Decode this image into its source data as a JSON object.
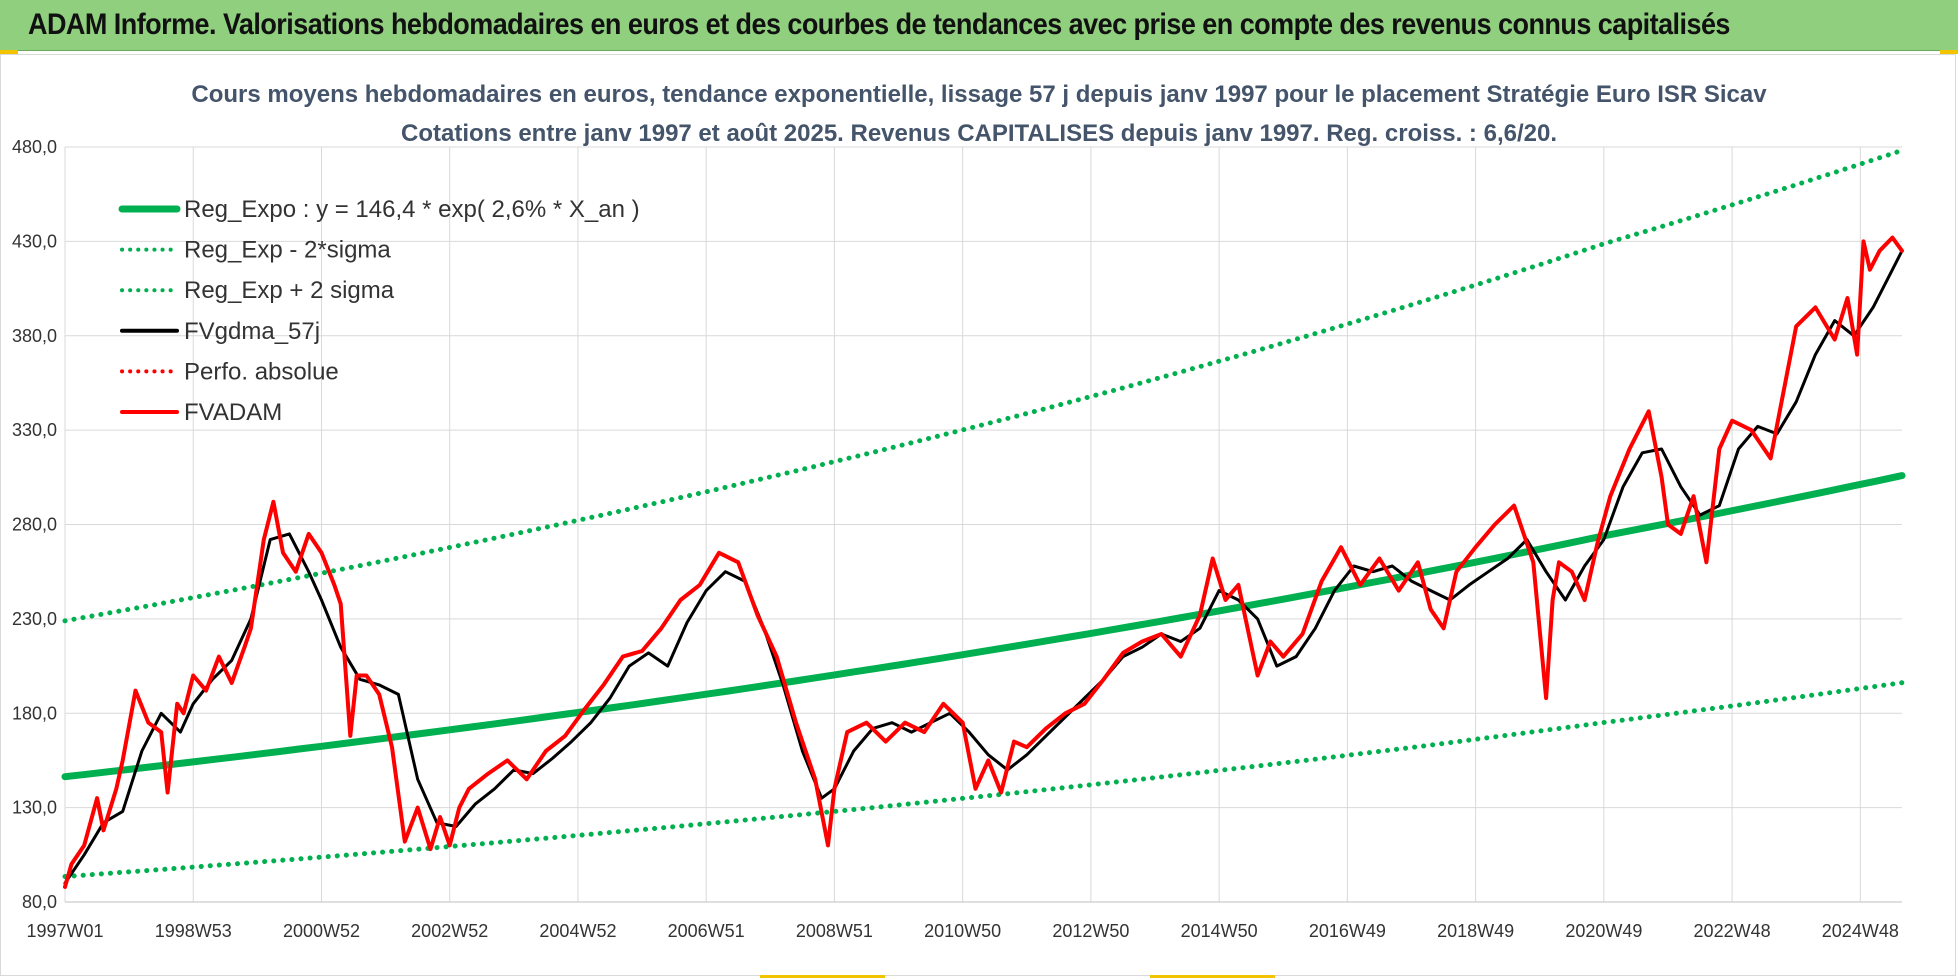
{
  "header": {
    "title": "ADAM Informe. Valorisations hebdomadaires en euros et des courbes de tendances avec prise en compte des revenus connus capitalisés"
  },
  "chart_data": {
    "type": "line",
    "title_line1": "Cours moyens hebdomadaires en euros, tendance exponentielle, lissage 57 j depuis janv 1997 pour le placement Stratégie Euro ISR Sicav",
    "title_line2": "Cotations entre janv 1997 et août 2025. Revenus CAPITALISES depuis janv 1997. Reg. croiss. : 6,6/20.",
    "ylim": [
      80,
      480
    ],
    "yticks": [
      "80,0",
      "130,0",
      "180,0",
      "230,0",
      "280,0",
      "330,0",
      "380,0",
      "430,0",
      "480,0"
    ],
    "xlim": [
      1997.0,
      2025.65
    ],
    "xticks": [
      {
        "label": "1997W01",
        "x": 1997.0
      },
      {
        "label": "1998W53",
        "x": 1999.0
      },
      {
        "label": "2000W52",
        "x": 2001.0
      },
      {
        "label": "2002W52",
        "x": 2003.0
      },
      {
        "label": "2004W52",
        "x": 2005.0
      },
      {
        "label": "2006W51",
        "x": 2007.0
      },
      {
        "label": "2008W51",
        "x": 2009.0
      },
      {
        "label": "2010W50",
        "x": 2011.0
      },
      {
        "label": "2012W50",
        "x": 2013.0
      },
      {
        "label": "2014W50",
        "x": 2015.0
      },
      {
        "label": "2016W49",
        "x": 2017.0
      },
      {
        "label": "2018W49",
        "x": 2019.0
      },
      {
        "label": "2020W49",
        "x": 2021.0
      },
      {
        "label": "2022W48",
        "x": 2023.0
      },
      {
        "label": "2024W48",
        "x": 2025.0
      }
    ],
    "grid": true,
    "legend_position": "top-left",
    "series": [
      {
        "name": "Reg_Expo : y = 146,4 * exp( 2,6% *  X_an )",
        "color": "#00b050",
        "style": "solid",
        "x": [
          1997.0,
          2001.0,
          2005.0,
          2009.0,
          2013.0,
          2017.0,
          2021.0,
          2025.65
        ],
        "values": [
          146.4,
          162.5,
          180.4,
          200.3,
          222.3,
          246.8,
          274.0,
          305.9
        ]
      },
      {
        "name": "Reg_Exp - 2*sigma",
        "color": "#00b050",
        "style": "dotted",
        "x": [
          1997.0,
          2001.0,
          2005.0,
          2009.0,
          2013.0,
          2017.0,
          2021.0,
          2025.65
        ],
        "values": [
          93.5,
          103.8,
          115.3,
          128.0,
          142.1,
          157.7,
          175.1,
          196.2
        ]
      },
      {
        "name": "Reg_Exp + 2 sigma",
        "color": "#00b050",
        "style": "dotted",
        "x": [
          1997.0,
          2001.0,
          2005.0,
          2009.0,
          2013.0,
          2017.0,
          2021.0,
          2025.65
        ],
        "values": [
          229.0,
          254.2,
          282.2,
          313.3,
          347.8,
          386.2,
          428.7,
          478.2
        ]
      },
      {
        "name": "FVgdma_57j",
        "color": "#000000",
        "style": "solid",
        "x": [
          1997.0,
          1997.3,
          1997.6,
          1997.9,
          1998.2,
          1998.5,
          1998.8,
          1999.0,
          1999.3,
          1999.6,
          1999.9,
          2000.2,
          2000.5,
          2000.8,
          2001.0,
          2001.3,
          2001.6,
          2001.9,
          2002.2,
          2002.5,
          2002.8,
          2003.1,
          2003.4,
          2003.7,
          2004.0,
          2004.3,
          2004.6,
          2004.9,
          2005.2,
          2005.5,
          2005.8,
          2006.1,
          2006.4,
          2006.7,
          2007.0,
          2007.3,
          2007.6,
          2007.9,
          2008.2,
          2008.5,
          2008.8,
          2009.0,
          2009.3,
          2009.6,
          2009.9,
          2010.2,
          2010.5,
          2010.8,
          2011.1,
          2011.4,
          2011.7,
          2012.0,
          2012.3,
          2012.6,
          2012.9,
          2013.2,
          2013.5,
          2013.8,
          2014.1,
          2014.4,
          2014.7,
          2015.0,
          2015.3,
          2015.6,
          2015.9,
          2016.2,
          2016.5,
          2016.8,
          2017.1,
          2017.4,
          2017.7,
          2018.0,
          2018.3,
          2018.6,
          2018.9,
          2019.2,
          2019.5,
          2019.8,
          2020.1,
          2020.4,
          2020.7,
          2021.0,
          2021.3,
          2021.6,
          2021.9,
          2022.2,
          2022.5,
          2022.8,
          2023.1,
          2023.4,
          2023.7,
          2024.0,
          2024.3,
          2024.6,
          2024.9,
          2025.2,
          2025.5,
          2025.65
        ],
        "values": [
          90,
          105,
          122,
          128,
          160,
          180,
          170,
          185,
          198,
          208,
          230,
          272,
          275,
          255,
          240,
          215,
          198,
          195,
          190,
          145,
          122,
          120,
          132,
          140,
          150,
          148,
          156,
          165,
          175,
          188,
          205,
          212,
          205,
          228,
          245,
          255,
          250,
          225,
          195,
          160,
          135,
          140,
          160,
          172,
          175,
          170,
          175,
          180,
          170,
          158,
          150,
          158,
          168,
          178,
          188,
          198,
          210,
          215,
          222,
          218,
          225,
          245,
          240,
          230,
          205,
          210,
          225,
          245,
          258,
          255,
          258,
          250,
          245,
          240,
          248,
          255,
          262,
          272,
          255,
          240,
          258,
          272,
          300,
          318,
          320,
          300,
          285,
          290,
          320,
          332,
          328,
          345,
          370,
          388,
          380,
          395,
          415,
          425
        ]
      },
      {
        "name": "Perfo. absolue",
        "color": "#ff0000",
        "style": "dotted",
        "x": [],
        "values": []
      },
      {
        "name": "FVADAM",
        "color": "#ff0000",
        "style": "solid",
        "x": [
          1997.0,
          1997.1,
          1997.3,
          1997.5,
          1997.6,
          1997.8,
          1997.9,
          1998.1,
          1998.3,
          1998.5,
          1998.6,
          1998.75,
          1998.85,
          1999.0,
          1999.2,
          1999.4,
          1999.6,
          1999.8,
          1999.9,
          2000.1,
          2000.25,
          2000.4,
          2000.6,
          2000.8,
          2001.0,
          2001.2,
          2001.3,
          2001.45,
          2001.55,
          2001.7,
          2001.9,
          2002.1,
          2002.3,
          2002.5,
          2002.7,
          2002.85,
          2003.0,
          2003.15,
          2003.3,
          2003.6,
          2003.9,
          2004.2,
          2004.5,
          2004.8,
          2005.1,
          2005.4,
          2005.7,
          2006.0,
          2006.3,
          2006.6,
          2006.9,
          2007.2,
          2007.5,
          2007.8,
          2008.1,
          2008.4,
          2008.7,
          2008.9,
          2009.0,
          2009.2,
          2009.5,
          2009.8,
          2010.1,
          2010.4,
          2010.7,
          2011.0,
          2011.2,
          2011.4,
          2011.6,
          2011.8,
          2012.0,
          2012.3,
          2012.6,
          2012.9,
          2013.2,
          2013.5,
          2013.8,
          2014.1,
          2014.4,
          2014.7,
          2014.9,
          2015.1,
          2015.3,
          2015.6,
          2015.8,
          2016.0,
          2016.3,
          2016.6,
          2016.9,
          2017.2,
          2017.5,
          2017.8,
          2018.1,
          2018.3,
          2018.5,
          2018.7,
          2019.0,
          2019.3,
          2019.6,
          2019.9,
          2020.1,
          2020.2,
          2020.3,
          2020.5,
          2020.7,
          2020.9,
          2021.1,
          2021.4,
          2021.7,
          2021.9,
          2022.0,
          2022.2,
          2022.4,
          2022.6,
          2022.8,
          2023.0,
          2023.3,
          2023.6,
          2023.8,
          2024.0,
          2024.3,
          2024.6,
          2024.8,
          2024.95,
          2025.05,
          2025.15,
          2025.3,
          2025.5,
          2025.65
        ],
        "values": [
          88,
          100,
          110,
          135,
          118,
          140,
          155,
          192,
          175,
          170,
          138,
          185,
          180,
          200,
          192,
          210,
          196,
          215,
          225,
          272,
          292,
          265,
          255,
          275,
          265,
          248,
          238,
          168,
          200,
          200,
          190,
          162,
          112,
          130,
          108,
          125,
          110,
          130,
          140,
          148,
          155,
          145,
          160,
          168,
          182,
          195,
          210,
          213,
          225,
          240,
          248,
          265,
          260,
          232,
          210,
          175,
          145,
          110,
          140,
          170,
          175,
          165,
          175,
          170,
          185,
          175,
          140,
          155,
          138,
          165,
          162,
          172,
          180,
          185,
          198,
          212,
          218,
          222,
          210,
          232,
          262,
          240,
          248,
          200,
          218,
          210,
          222,
          250,
          268,
          248,
          262,
          245,
          260,
          235,
          225,
          255,
          268,
          280,
          290,
          260,
          188,
          240,
          260,
          255,
          240,
          270,
          295,
          320,
          340,
          305,
          280,
          275,
          295,
          260,
          320,
          335,
          330,
          315,
          350,
          385,
          395,
          378,
          400,
          370,
          430,
          415,
          425,
          432,
          425
        ]
      }
    ]
  }
}
